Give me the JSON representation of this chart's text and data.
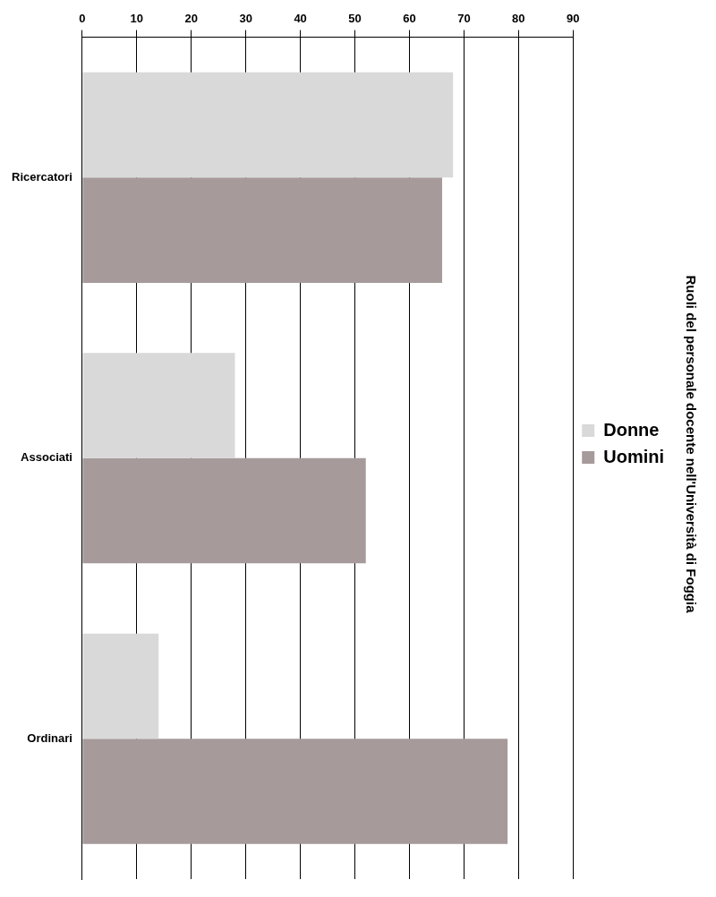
{
  "chart_data": {
    "type": "bar",
    "orientation": "horizontal",
    "title": "Ruoli del personale docente nell'Università di Foggia",
    "categories": [
      "Ricercatori",
      "Associati",
      "Ordinari"
    ],
    "series": [
      {
        "name": "Donne",
        "color": "#d9d9d9",
        "values": [
          68,
          28,
          14
        ]
      },
      {
        "name": "Uomini",
        "color": "#a69a9a",
        "values": [
          66,
          52,
          78
        ]
      }
    ],
    "xlim": [
      0,
      90
    ],
    "xticks": [
      0,
      10,
      20,
      30,
      40,
      50,
      60,
      70,
      80,
      90
    ],
    "grid": "x",
    "legend": "right"
  }
}
